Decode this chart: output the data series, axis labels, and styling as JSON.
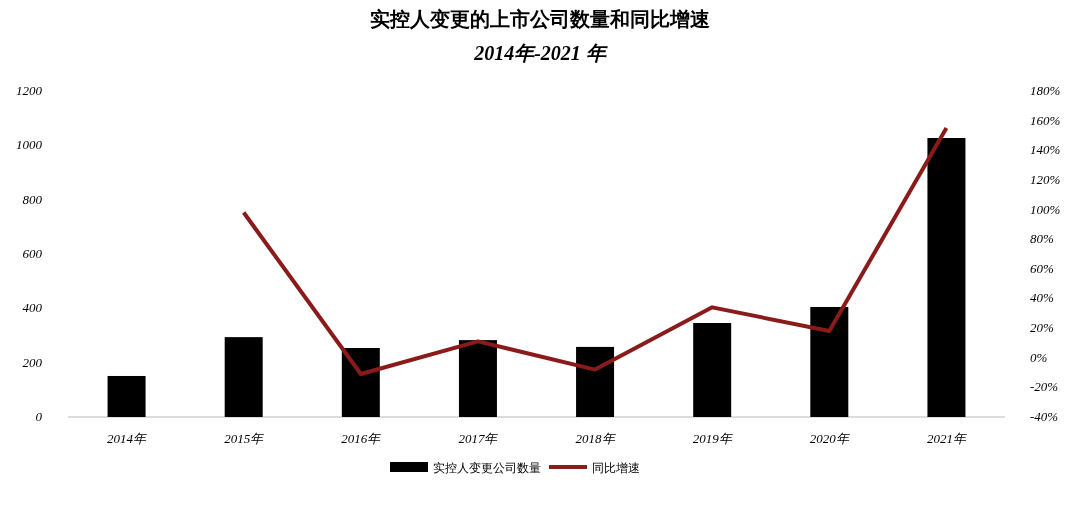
{
  "chart_data": {
    "type": "bar",
    "title": "实控人变更的上市公司数量和同比增速",
    "subtitle": "2014年-2021 年",
    "categories": [
      "2014年",
      "2015年",
      "2016年",
      "2017年",
      "2018年",
      "2019年",
      "2020年",
      "2021年"
    ],
    "series": [
      {
        "name": "实控人变更公司数量",
        "color": "#000000",
        "values": [
          151,
          294,
          254,
          283,
          258,
          346,
          405,
          1027
        ]
      },
      {
        "name": "同比增速",
        "type": "line",
        "axis": "y2",
        "color": "#8b1a1a",
        "values": [
          null,
          98,
          -11,
          11,
          -8,
          34,
          18,
          155
        ]
      }
    ],
    "ylim": [
      0,
      1200
    ],
    "yticks": [
      0,
      200,
      400,
      600,
      800,
      1000,
      1200
    ],
    "y2lim": [
      -40,
      180
    ],
    "y2ticks": [
      {
        "value": -40,
        "label": "-40%"
      },
      {
        "value": -20,
        "label": "-20%"
      },
      {
        "value": 0,
        "label": "0%"
      },
      {
        "value": 20,
        "label": "20%"
      },
      {
        "value": 40,
        "label": "40%"
      },
      {
        "value": 60,
        "label": "60%"
      },
      {
        "value": 80,
        "label": "80%"
      },
      {
        "value": 100,
        "label": "100%"
      },
      {
        "value": 120,
        "label": "120%"
      },
      {
        "value": 140,
        "label": "140%"
      },
      {
        "value": 160,
        "label": "160%"
      },
      {
        "value": 180,
        "label": "180%"
      }
    ],
    "grid": false,
    "legend": "bottom",
    "marker": "none",
    "line_style": "solid"
  }
}
